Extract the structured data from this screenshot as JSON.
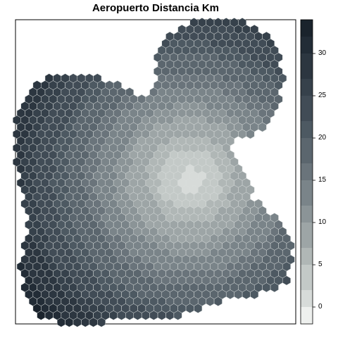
{
  "title": "Aeropuerto Distancia Km",
  "chart_data": {
    "type": "heatmap",
    "title": "Aeropuerto Distancia Km",
    "variable": "Distancia Km",
    "value_range": [
      0,
      34
    ],
    "center_value": 0,
    "max_value_corner": 34,
    "legend": {
      "placement": "right",
      "breaks": [
        -2,
        0,
        2,
        5,
        7,
        10,
        12,
        15,
        17,
        20,
        22,
        25,
        27,
        30,
        32,
        34
      ],
      "tick_values": [
        0,
        5,
        10,
        15,
        20,
        25,
        30
      ],
      "tick_labels": [
        "0",
        "5",
        "10",
        "15",
        "20",
        "25",
        "30"
      ],
      "colors": [
        "#eef0ee",
        "#d7dbd9",
        "#c3c9c7",
        "#b0b7b6",
        "#9da5a6",
        "#8b9497",
        "#7a8489",
        "#6a747b",
        "#5b666e",
        "#4d5962",
        "#414c56",
        "#36414b",
        "#2c3640",
        "#222c36",
        "#1a232c"
      ]
    },
    "grid": false
  }
}
